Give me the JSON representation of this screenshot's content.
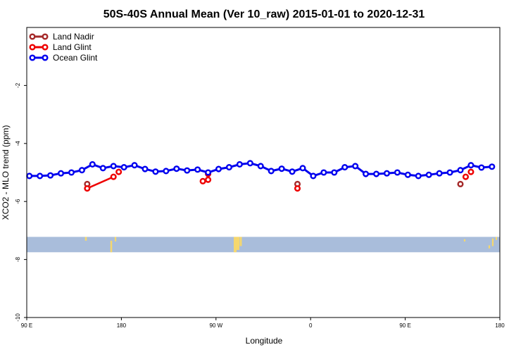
{
  "chart_data": {
    "type": "line",
    "title": "50S-40S Annual Mean (Ver 10_raw)   2015-01-01 to 2020-12-31",
    "xlabel": "Longitude",
    "ylabel": "XCO2 - MLO trend (ppm)",
    "x_ticks": [
      "90 E",
      "180",
      "90 W",
      "0",
      "90 E",
      "180"
    ],
    "x_tick_values": [
      90,
      180,
      270,
      360,
      450,
      540
    ],
    "xlim": [
      90,
      540
    ],
    "ylim": [
      -10,
      0
    ],
    "y_ticks": [
      -2,
      -4,
      -6,
      -8,
      -10
    ],
    "grid": false,
    "legend_position": "top-left",
    "series": [
      {
        "name": "Land Nadir",
        "color": "#a52a2a",
        "points": [
          [
            147.5,
            -5.4
          ],
          [
            347.5,
            -5.4
          ],
          [
            502.5,
            -5.4
          ]
        ]
      },
      {
        "name": "Land Glint",
        "color": "#ee0000",
        "points": [
          [
            147.5,
            -5.55
          ],
          [
            172.5,
            -5.15
          ],
          [
            177.5,
            -4.98
          ],
          [
            257.5,
            -5.3
          ],
          [
            262.5,
            -5.25
          ],
          [
            262.5,
            -5.05
          ],
          [
            347.5,
            -5.55
          ],
          [
            507.5,
            -5.15
          ],
          [
            512.5,
            -4.98
          ]
        ]
      },
      {
        "name": "Ocean Glint",
        "color": "#0000ee",
        "points": [
          [
            92.5,
            -5.12
          ],
          [
            102.5,
            -5.12
          ],
          [
            112.5,
            -5.1
          ],
          [
            122.5,
            -5.03
          ],
          [
            132.5,
            -5.0
          ],
          [
            142.5,
            -4.92
          ],
          [
            152.5,
            -4.72
          ],
          [
            162.5,
            -4.85
          ],
          [
            172.5,
            -4.78
          ],
          [
            182.5,
            -4.82
          ],
          [
            192.5,
            -4.75
          ],
          [
            202.5,
            -4.88
          ],
          [
            212.5,
            -4.97
          ],
          [
            222.5,
            -4.95
          ],
          [
            232.5,
            -4.87
          ],
          [
            242.5,
            -4.93
          ],
          [
            252.5,
            -4.9
          ],
          [
            262.5,
            -5.0
          ],
          [
            272.5,
            -4.88
          ],
          [
            282.5,
            -4.82
          ],
          [
            292.5,
            -4.72
          ],
          [
            302.5,
            -4.68
          ],
          [
            312.5,
            -4.78
          ],
          [
            322.5,
            -4.95
          ],
          [
            332.5,
            -4.87
          ],
          [
            342.5,
            -4.97
          ],
          [
            352.5,
            -4.85
          ],
          [
            362.5,
            -5.12
          ],
          [
            372.5,
            -5.0
          ],
          [
            382.5,
            -5.0
          ],
          [
            392.5,
            -4.82
          ],
          [
            402.5,
            -4.78
          ],
          [
            412.5,
            -5.05
          ],
          [
            422.5,
            -5.05
          ],
          [
            432.5,
            -5.03
          ],
          [
            442.5,
            -5.0
          ],
          [
            452.5,
            -5.08
          ],
          [
            462.5,
            -5.12
          ],
          [
            472.5,
            -5.08
          ],
          [
            482.5,
            -5.03
          ],
          [
            492.5,
            -5.0
          ],
          [
            502.5,
            -4.92
          ],
          [
            512.5,
            -4.75
          ],
          [
            522.5,
            -4.83
          ],
          [
            532.5,
            -4.8
          ]
        ]
      }
    ],
    "map_strip": {
      "y_range": [
        -7.75,
        -7.22
      ],
      "ocean_color": "#a9bddb",
      "land_color": "#f5d76e"
    }
  }
}
